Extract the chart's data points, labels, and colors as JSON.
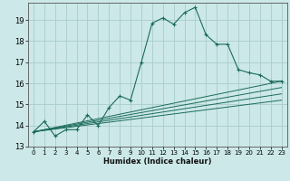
{
  "xlabel": "Humidex (Indice chaleur)",
  "bg_color": "#cce8e8",
  "grid_color": "#aacccc",
  "line_color": "#1a6b5a",
  "xlim": [
    -0.5,
    23.5
  ],
  "ylim": [
    13,
    19.8
  ],
  "yticks": [
    13,
    14,
    15,
    16,
    17,
    18,
    19
  ],
  "xticks": [
    0,
    1,
    2,
    3,
    4,
    5,
    6,
    7,
    8,
    9,
    10,
    11,
    12,
    13,
    14,
    15,
    16,
    17,
    18,
    19,
    20,
    21,
    22,
    23
  ],
  "series": [
    [
      0,
      13.7
    ],
    [
      1,
      14.2
    ],
    [
      2,
      13.5
    ],
    [
      3,
      13.8
    ],
    [
      4,
      13.8
    ],
    [
      5,
      14.5
    ],
    [
      6,
      14.0
    ],
    [
      7,
      14.85
    ],
    [
      8,
      15.4
    ],
    [
      9,
      15.2
    ],
    [
      10,
      17.0
    ],
    [
      11,
      18.85
    ],
    [
      12,
      19.1
    ],
    [
      13,
      18.8
    ],
    [
      14,
      19.35
    ],
    [
      15,
      19.6
    ],
    [
      16,
      18.3
    ],
    [
      17,
      17.85
    ],
    [
      18,
      17.85
    ],
    [
      19,
      16.65
    ],
    [
      20,
      16.5
    ],
    [
      21,
      16.4
    ],
    [
      22,
      16.1
    ],
    [
      23,
      16.1
    ]
  ],
  "trend_lines": [
    [
      [
        0,
        13.7
      ],
      [
        23,
        16.1
      ]
    ],
    [
      [
        0,
        13.7
      ],
      [
        23,
        15.8
      ]
    ],
    [
      [
        0,
        13.7
      ],
      [
        23,
        15.5
      ]
    ],
    [
      [
        0,
        13.7
      ],
      [
        23,
        15.2
      ]
    ]
  ]
}
